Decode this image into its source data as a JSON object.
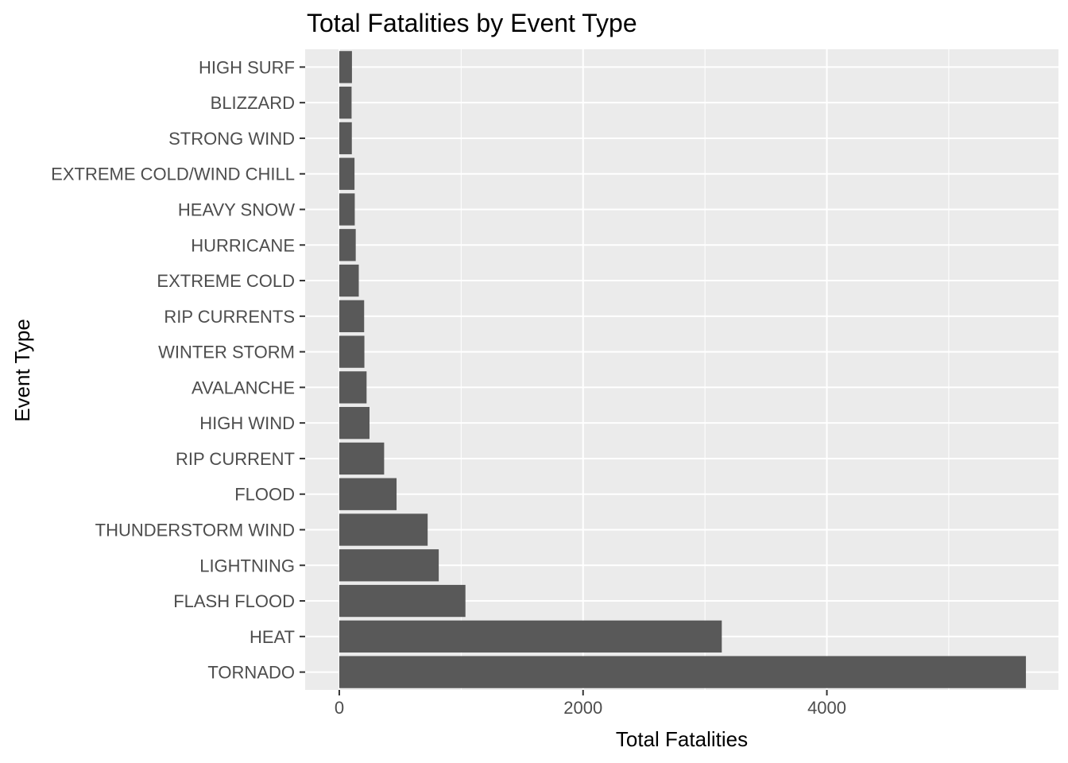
{
  "chart_data": {
    "type": "bar",
    "orientation": "horizontal",
    "title": "Total Fatalities by Event Type",
    "xlabel": "Total Fatalities",
    "ylabel": "Event Type",
    "xlim": [
      -280,
      5900
    ],
    "xticks": [
      0,
      2000,
      4000
    ],
    "x_minor_ticks": [
      1000,
      3000,
      5000
    ],
    "grid": true,
    "bar_color": "#595959",
    "panel_color": "#EBEBEB",
    "grid_color": "#FFFFFF",
    "categories": [
      "HIGH SURF",
      "BLIZZARD",
      "STRONG WIND",
      "EXTREME COLD/WIND CHILL",
      "HEAVY SNOW",
      "HURRICANE",
      "EXTREME COLD",
      "RIP CURRENTS",
      "WINTER STORM",
      "AVALANCHE",
      "HIGH WIND",
      "RIP CURRENT",
      "FLOOD",
      "THUNDERSTORM WIND",
      "LIGHTNING",
      "FLASH FLOOD",
      "HEAT",
      "TORNADO"
    ],
    "values": [
      104,
      101,
      103,
      125,
      127,
      135,
      160,
      204,
      206,
      224,
      248,
      368,
      470,
      725,
      816,
      1035,
      3138,
      5633
    ]
  }
}
